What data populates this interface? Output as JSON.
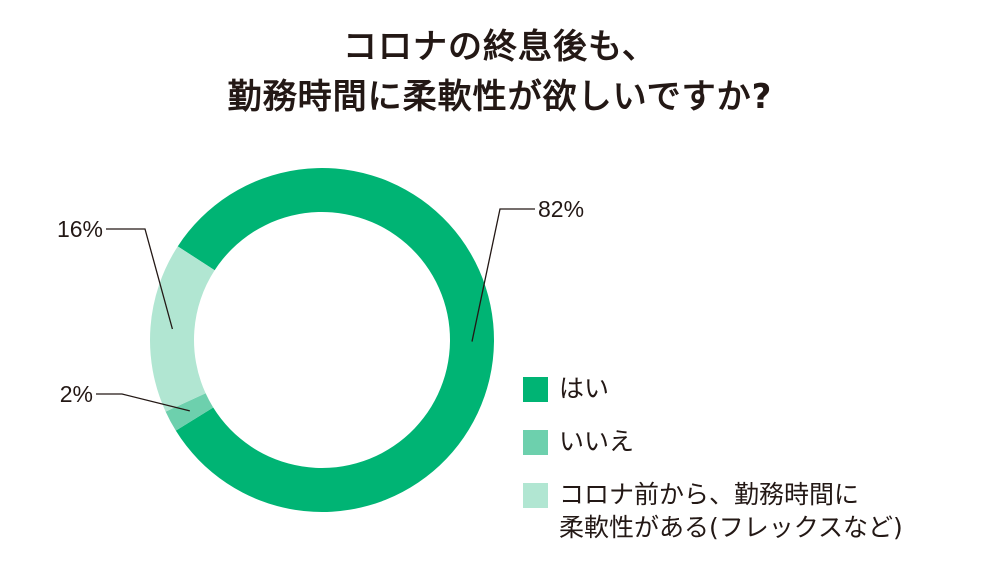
{
  "title_lines": [
    "コロナの終息後も、",
    "勤務時間に柔軟性が欲しいですか?"
  ],
  "chart_data": {
    "type": "pie",
    "donut": true,
    "categories": [
      "はい",
      "いいえ",
      "コロナ前から、勤務時間に\n柔軟性がある(フレックスなど)"
    ],
    "values": [
      82,
      2,
      16
    ],
    "data_labels": [
      "82%",
      "2%",
      "16%"
    ],
    "colors": [
      "#00b474",
      "#6dd0ad",
      "#b1e6d2"
    ],
    "legend_placement": "bottom-right"
  }
}
